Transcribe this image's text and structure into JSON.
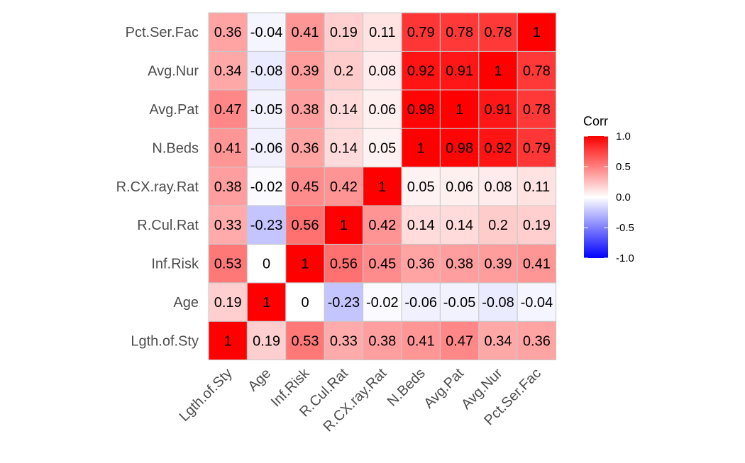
{
  "chart_data": {
    "type": "heatmap",
    "title": "",
    "xlabel": "",
    "ylabel": "",
    "variables": [
      "Lgth.of.Sty",
      "Age",
      "Inf.Risk",
      "R.Cul.Rat",
      "R.CX.ray.Rat",
      "N.Beds",
      "Avg.Pat",
      "Avg.Nur",
      "Pct.Ser.Fac"
    ],
    "x_categories": [
      "Lgth.of.Sty",
      "Age",
      "Inf.Risk",
      "R.Cul.Rat",
      "R.CX.ray.Rat",
      "N.Beds",
      "Avg.Pat",
      "Avg.Nur",
      "Pct.Ser.Fac"
    ],
    "y_categories_bottom_to_top": [
      "Lgth.of.Sty",
      "Age",
      "Inf.Risk",
      "R.Cul.Rat",
      "R.CX.ray.Rat",
      "N.Beds",
      "Avg.Pat",
      "Avg.Nur",
      "Pct.Ser.Fac"
    ],
    "matrix": [
      [
        1,
        0.19,
        0.53,
        0.33,
        0.38,
        0.41,
        0.47,
        0.34,
        0.36
      ],
      [
        0.19,
        1,
        0,
        -0.23,
        -0.02,
        -0.06,
        -0.05,
        -0.08,
        -0.04
      ],
      [
        0.53,
        0,
        1,
        0.56,
        0.45,
        0.36,
        0.38,
        0.39,
        0.41
      ],
      [
        0.33,
        -0.23,
        0.56,
        1,
        0.42,
        0.14,
        0.14,
        0.2,
        0.19
      ],
      [
        0.38,
        -0.02,
        0.45,
        0.42,
        1,
        0.05,
        0.06,
        0.08,
        0.11
      ],
      [
        0.41,
        -0.06,
        0.36,
        0.14,
        0.05,
        1,
        0.98,
        0.92,
        0.79
      ],
      [
        0.47,
        -0.05,
        0.38,
        0.14,
        0.06,
        0.98,
        1,
        0.91,
        0.78
      ],
      [
        0.34,
        -0.08,
        0.39,
        0.2,
        0.08,
        0.92,
        0.91,
        1,
        0.78
      ],
      [
        0.36,
        -0.04,
        0.41,
        0.19,
        0.11,
        0.79,
        0.78,
        0.78,
        1
      ]
    ],
    "legend": {
      "title": "Corr",
      "position": "right",
      "range": [
        -1,
        1
      ],
      "ticks": [
        1.0,
        0.5,
        0.0,
        -0.5,
        -1.0
      ],
      "tick_labels": [
        "1.0",
        "0.5",
        "0.0",
        "-0.5",
        "-1.0"
      ]
    },
    "colors": {
      "low": "#0000ff",
      "mid": "#ffffff",
      "high": "#ff0000",
      "grid": "#c8c8c8"
    },
    "grid": false
  }
}
